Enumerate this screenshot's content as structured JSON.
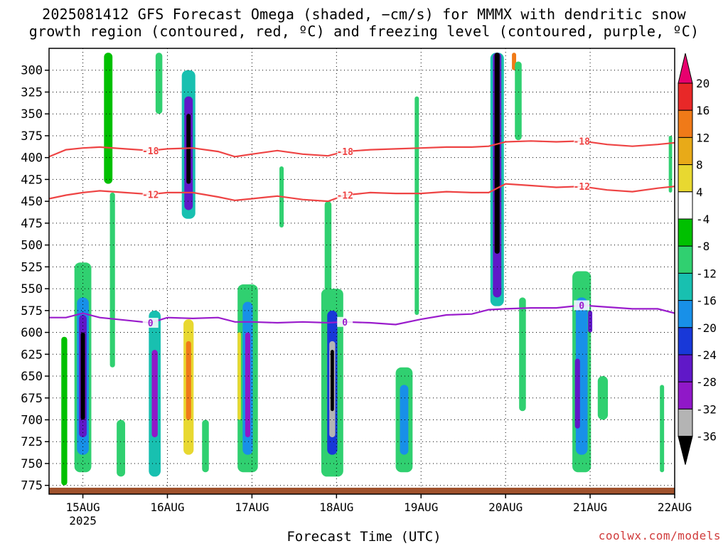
{
  "title": {
    "line1": "2025081412 GFS Forecast Omega (shaded, −cm/s) for MMMX with dendritic snow",
    "line2": "growth region (contoured, red, ºC) and freezing level (contoured, purple, ºC)"
  },
  "xlabel": "Forecast Time (UTC)",
  "credit": "coolwx.com/models",
  "colors": {
    "dgz_contour": "#ee4444",
    "freezing_contour": "#9a1ccc",
    "terrain": "#a0522d"
  },
  "chart_data": {
    "type": "heatmap",
    "title": "2025081412 GFS Forecast Omega (shaded, −cm/s) for MMMX with dendritic snow growth region (contoured, red, ºC) and freezing level (contoured, purple, ºC)",
    "xlabel": "Forecast Time (UTC)",
    "ylabel": "",
    "x_ticks": [
      "15AUG",
      "16AUG",
      "17AUG",
      "18AUG",
      "19AUG",
      "20AUG",
      "21AUG",
      "22AUG"
    ],
    "x_tick_year": "2025",
    "xlim_days": [
      14.6,
      22.0
    ],
    "y_ticks": [
      300,
      325,
      350,
      375,
      400,
      425,
      450,
      475,
      500,
      525,
      550,
      575,
      600,
      625,
      650,
      675,
      700,
      725,
      750,
      775
    ],
    "ylim": [
      275,
      785
    ],
    "y_reversed": true,
    "grid": true,
    "colorbar": {
      "ticks": [
        20,
        16,
        12,
        8,
        4,
        -4,
        -8,
        -12,
        -16,
        -20,
        -24,
        -28,
        -32,
        -36
      ],
      "colors": [
        "#e82828",
        "#f07a18",
        "#e8aa18",
        "#e8d830",
        "#ffffff",
        "#00c000",
        "#30d070",
        "#18c0b0",
        "#1890e8",
        "#1838d8",
        "#6018c8",
        "#9018c8",
        "#b4b4b4",
        "#000000"
      ],
      "top_color": "#e8006e"
    },
    "contours": [
      {
        "label": "-18",
        "color": "#ee4444",
        "x": [
          14.6,
          14.8,
          15.0,
          15.2,
          15.5,
          15.8,
          16.0,
          16.3,
          16.6,
          16.8,
          17.0,
          17.3,
          17.6,
          17.9,
          18.1,
          18.4,
          18.7,
          19.0,
          19.3,
          19.6,
          19.8,
          20.0,
          20.3,
          20.6,
          20.9,
          21.2,
          21.5,
          21.8,
          22.0
        ],
        "y": [
          399,
          391,
          389,
          388,
          390,
          392,
          390,
          389,
          393,
          399,
          396,
          392,
          396,
          398,
          393,
          391,
          390,
          389,
          388,
          388,
          387,
          382,
          381,
          382,
          381,
          385,
          387,
          385,
          383
        ]
      },
      {
        "label": "-12",
        "color": "#ee4444",
        "x": [
          14.6,
          14.8,
          15.0,
          15.2,
          15.5,
          15.8,
          16.0,
          16.3,
          16.6,
          16.8,
          17.0,
          17.3,
          17.6,
          17.9,
          18.1,
          18.4,
          18.7,
          19.0,
          19.3,
          19.6,
          19.8,
          20.0,
          20.3,
          20.6,
          20.9,
          21.2,
          21.5,
          21.8,
          22.0
        ],
        "y": [
          447,
          443,
          440,
          438,
          440,
          442,
          440,
          440,
          445,
          449,
          447,
          444,
          448,
          450,
          443,
          440,
          441,
          441,
          439,
          440,
          440,
          430,
          432,
          434,
          433,
          437,
          439,
          435,
          433
        ]
      },
      {
        "label": "0",
        "color": "#9a1ccc",
        "x": [
          14.6,
          14.8,
          15.0,
          15.2,
          15.5,
          15.8,
          16.0,
          16.3,
          16.6,
          16.8,
          17.0,
          17.3,
          17.6,
          17.9,
          18.1,
          18.4,
          18.7,
          19.0,
          19.3,
          19.6,
          19.8,
          20.0,
          20.3,
          20.6,
          20.9,
          21.2,
          21.5,
          21.8,
          22.0
        ],
        "y": [
          583,
          583,
          578,
          583,
          586,
          589,
          583,
          584,
          583,
          588,
          588,
          589,
          588,
          589,
          588,
          589,
          591,
          585,
          580,
          579,
          574,
          573,
          572,
          572,
          569,
          571,
          573,
          573,
          578
        ]
      }
    ],
    "omega_cells": [
      {
        "t": 14.78,
        "p_top": 605,
        "p_bot": 775,
        "w": 0.07,
        "v": 3
      },
      {
        "t": 15.0,
        "p_top": 520,
        "p_bot": 760,
        "w": 0.2,
        "v": -8
      },
      {
        "t": 15.0,
        "p_top": 560,
        "p_bot": 740,
        "w": 0.14,
        "v": -16
      },
      {
        "t": 15.0,
        "p_top": 580,
        "p_bot": 720,
        "w": 0.09,
        "v": -24
      },
      {
        "t": 15.0,
        "p_top": 600,
        "p_bot": 700,
        "w": 0.05,
        "v": -36
      },
      {
        "t": 15.35,
        "p_top": 440,
        "p_bot": 640,
        "w": 0.06,
        "v": -5
      },
      {
        "t": 15.3,
        "p_top": 280,
        "p_bot": 430,
        "w": 0.1,
        "v": 3
      },
      {
        "t": 15.45,
        "p_top": 700,
        "p_bot": 765,
        "w": 0.1,
        "v": -8
      },
      {
        "t": 15.9,
        "p_top": 280,
        "p_bot": 350,
        "w": 0.08,
        "v": -5
      },
      {
        "t": 16.25,
        "p_top": 300,
        "p_bot": 470,
        "w": 0.16,
        "v": -10
      },
      {
        "t": 16.25,
        "p_top": 330,
        "p_bot": 460,
        "w": 0.1,
        "v": -22
      },
      {
        "t": 16.25,
        "p_top": 350,
        "p_bot": 430,
        "w": 0.05,
        "v": -36
      },
      {
        "t": 15.85,
        "p_top": 575,
        "p_bot": 765,
        "w": 0.14,
        "v": -10
      },
      {
        "t": 15.85,
        "p_top": 620,
        "p_bot": 720,
        "w": 0.07,
        "v": -26
      },
      {
        "t": 16.25,
        "p_top": 585,
        "p_bot": 740,
        "w": 0.12,
        "v": 9
      },
      {
        "t": 16.25,
        "p_top": 610,
        "p_bot": 700,
        "w": 0.06,
        "v": 16
      },
      {
        "t": 16.45,
        "p_top": 700,
        "p_bot": 760,
        "w": 0.08,
        "v": -6
      },
      {
        "t": 16.9,
        "p_top": 310,
        "p_bot": 520,
        "w": 0.14,
        "v": 4
      },
      {
        "t": 16.95,
        "p_top": 545,
        "p_bot": 760,
        "w": 0.24,
        "v": -7
      },
      {
        "t": 16.95,
        "p_top": 565,
        "p_bot": 740,
        "w": 0.12,
        "v": -14
      },
      {
        "t": 16.95,
        "p_top": 600,
        "p_bot": 720,
        "w": 0.06,
        "v": -28
      },
      {
        "t": 16.85,
        "p_top": 600,
        "p_bot": 700,
        "w": 0.04,
        "v": 11
      },
      {
        "t": 17.35,
        "p_top": 410,
        "p_bot": 480,
        "w": 0.05,
        "v": -5
      },
      {
        "t": 17.9,
        "p_top": 450,
        "p_bot": 600,
        "w": 0.08,
        "v": -6
      },
      {
        "t": 17.95,
        "p_top": 550,
        "p_bot": 765,
        "w": 0.26,
        "v": -8
      },
      {
        "t": 17.95,
        "p_top": 575,
        "p_bot": 740,
        "w": 0.12,
        "v": -18
      },
      {
        "t": 17.95,
        "p_top": 610,
        "p_bot": 720,
        "w": 0.07,
        "v": -30
      },
      {
        "t": 17.95,
        "p_top": 620,
        "p_bot": 690,
        "w": 0.04,
        "v": -36
      },
      {
        "t": 18.35,
        "p_top": 280,
        "p_bot": 380,
        "w": 0.1,
        "v": 4
      },
      {
        "t": 18.8,
        "p_top": 640,
        "p_bot": 760,
        "w": 0.2,
        "v": -8
      },
      {
        "t": 18.8,
        "p_top": 660,
        "p_bot": 740,
        "w": 0.1,
        "v": -14
      },
      {
        "t": 18.95,
        "p_top": 330,
        "p_bot": 580,
        "w": 0.05,
        "v": -6
      },
      {
        "t": 19.7,
        "p_top": 600,
        "p_bot": 715,
        "w": 0.14,
        "v": 4
      },
      {
        "t": 19.9,
        "p_top": 280,
        "p_bot": 570,
        "w": 0.16,
        "v": -10
      },
      {
        "t": 19.9,
        "p_top": 280,
        "p_bot": 560,
        "w": 0.1,
        "v": -24
      },
      {
        "t": 19.9,
        "p_top": 280,
        "p_bot": 510,
        "w": 0.06,
        "v": -36
      },
      {
        "t": 20.1,
        "p_top": 280,
        "p_bot": 300,
        "w": 0.05,
        "v": 16
      },
      {
        "t": 20.2,
        "p_top": 560,
        "p_bot": 690,
        "w": 0.08,
        "v": -6
      },
      {
        "t": 20.15,
        "p_top": 290,
        "p_bot": 380,
        "w": 0.08,
        "v": -8
      },
      {
        "t": 20.75,
        "p_top": 280,
        "p_bot": 380,
        "w": 0.12,
        "v": 4
      },
      {
        "t": 20.9,
        "p_top": 530,
        "p_bot": 760,
        "w": 0.22,
        "v": -8
      },
      {
        "t": 20.9,
        "p_top": 560,
        "p_bot": 740,
        "w": 0.14,
        "v": -16
      },
      {
        "t": 20.85,
        "p_top": 630,
        "p_bot": 710,
        "w": 0.06,
        "v": -22
      },
      {
        "t": 21.0,
        "p_top": 575,
        "p_bot": 600,
        "w": 0.05,
        "v": -22
      },
      {
        "t": 21.15,
        "p_top": 650,
        "p_bot": 700,
        "w": 0.12,
        "v": -6
      },
      {
        "t": 21.45,
        "p_top": 580,
        "p_bot": 640,
        "w": 0.05,
        "v": 4
      },
      {
        "t": 21.85,
        "p_top": 660,
        "p_bot": 760,
        "w": 0.05,
        "v": -6
      },
      {
        "t": 21.95,
        "p_top": 375,
        "p_bot": 440,
        "w": 0.04,
        "v": -6
      }
    ]
  }
}
